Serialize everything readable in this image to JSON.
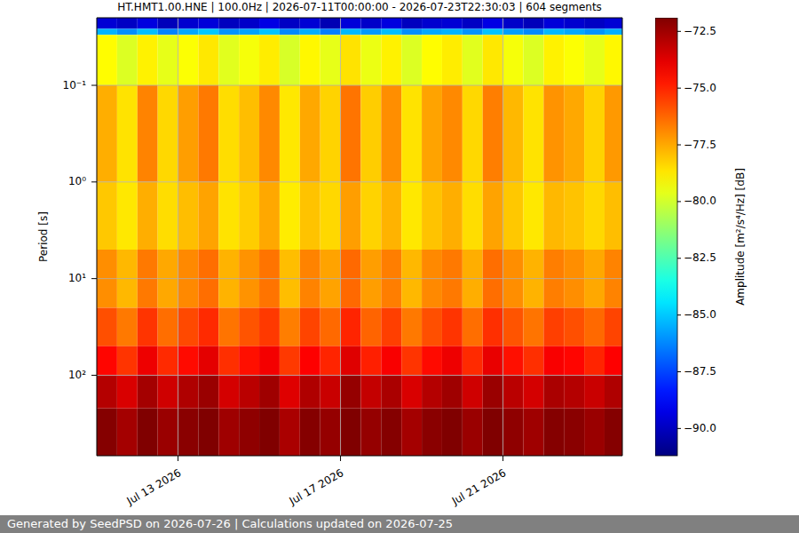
{
  "chart_data": {
    "type": "heatmap",
    "title": "HT.HMT1.00.HNE | 100.0Hz | 2026-07-11T00:00:00 - 2026-07-23T22:30:03 | 604 segments",
    "footer": "Generated by SeedPSD on 2026-07-26 | Calculations updated on 2026-07-25",
    "y_label": "Period [s]",
    "log": "y",
    "grid": true,
    "xlim": [
      "2026-07-11T00:00:00",
      "2026-07-23T22:30:03"
    ],
    "xticks": [
      {
        "value": "2026-07-13T00:00:00",
        "label": "Jul 13 2026"
      },
      {
        "value": "2026-07-17T00:00:00",
        "label": "Jul 17 2026"
      },
      {
        "value": "2026-07-21T00:00:00",
        "label": "Jul 21 2026"
      }
    ],
    "ylim": [
      0.02,
      680
    ],
    "yticks": [
      {
        "value": 0.1,
        "label": "10⁻¹"
      },
      {
        "value": 1,
        "label": "10⁰"
      },
      {
        "value": 10,
        "label": "10¹"
      },
      {
        "value": 100,
        "label": "10²"
      }
    ],
    "time_bins": [
      "2026-07-11T00:00:00",
      "2026-07-11T12:00:00",
      "2026-07-12T00:00:00",
      "2026-07-12T12:00:00",
      "2026-07-13T00:00:00",
      "2026-07-13T12:00:00",
      "2026-07-14T00:00:00",
      "2026-07-14T12:00:00",
      "2026-07-15T00:00:00",
      "2026-07-15T12:00:00",
      "2026-07-16T00:00:00",
      "2026-07-16T12:00:00",
      "2026-07-17T00:00:00",
      "2026-07-17T12:00:00",
      "2026-07-18T00:00:00",
      "2026-07-18T12:00:00",
      "2026-07-19T00:00:00",
      "2026-07-19T12:00:00",
      "2026-07-20T00:00:00",
      "2026-07-20T12:00:00",
      "2026-07-21T00:00:00",
      "2026-07-21T12:00:00",
      "2026-07-22T00:00:00",
      "2026-07-22T12:00:00",
      "2026-07-23T00:00:00",
      "2026-07-23T12:00:00",
      "2026-07-23T22:30:03"
    ],
    "period_bins": [
      0.02,
      0.026,
      0.03,
      0.1,
      1,
      5,
      20,
      50,
      100,
      220,
      680
    ],
    "values": [
      [
        -89.6,
        -89.9,
        -89.4,
        -90.1,
        -89.7,
        -89.5,
        -90.0,
        -89.8,
        -89.3,
        -89.9,
        -89.6,
        -90.2,
        -89.5,
        -89.8,
        -89.4,
        -90.0,
        -89.7,
        -89.6,
        -89.9,
        -89.3,
        -89.8,
        -90.1,
        -89.5,
        -89.7,
        -89.9,
        -89.6
      ],
      [
        -85.4,
        -86.1,
        -85.2,
        -86.3,
        -85.6,
        -85.0,
        -86.0,
        -85.7,
        -85.1,
        -86.2,
        -85.5,
        -86.4,
        -85.3,
        -85.9,
        -85.2,
        -86.1,
        -85.6,
        -85.4,
        -86.0,
        -85.1,
        -85.8,
        -86.2,
        -85.3,
        -85.6,
        -86.0,
        -85.5
      ],
      [
        -79.1,
        -79.8,
        -78.9,
        -79.6,
        -79.2,
        -78.7,
        -79.7,
        -79.3,
        -78.8,
        -79.9,
        -79.0,
        -79.6,
        -78.6,
        -79.5,
        -78.9,
        -79.8,
        -79.1,
        -78.8,
        -79.7,
        -78.7,
        -79.3,
        -79.8,
        -78.9,
        -79.2,
        -79.6,
        -79.0
      ],
      [
        -77.6,
        -78.6,
        -76.8,
        -78.4,
        -77.3,
        -76.6,
        -78.5,
        -77.9,
        -76.9,
        -78.7,
        -77.5,
        -78.3,
        -76.5,
        -78.2,
        -77.0,
        -78.6,
        -77.4,
        -76.9,
        -78.4,
        -76.7,
        -77.8,
        -78.6,
        -77.1,
        -77.5,
        -78.3,
        -77.2
      ],
      [
        -78.1,
        -78.7,
        -77.6,
        -78.5,
        -77.9,
        -77.4,
        -78.6,
        -78.2,
        -77.5,
        -78.8,
        -78.0,
        -78.4,
        -77.3,
        -78.3,
        -77.7,
        -78.7,
        -78.0,
        -77.6,
        -78.5,
        -77.4,
        -78.1,
        -78.7,
        -77.8,
        -78.0,
        -78.4,
        -77.9
      ],
      [
        -77.0,
        -77.8,
        -76.6,
        -77.5,
        -76.9,
        -76.4,
        -77.7,
        -77.1,
        -76.5,
        -77.9,
        -76.8,
        -77.4,
        -76.3,
        -77.3,
        -76.7,
        -77.8,
        -76.9,
        -76.6,
        -77.6,
        -76.4,
        -77.0,
        -77.7,
        -76.7,
        -77.0,
        -77.5,
        -76.8
      ],
      [
        -75.8,
        -76.6,
        -75.3,
        -76.4,
        -75.7,
        -75.1,
        -76.5,
        -75.9,
        -75.4,
        -76.7,
        -75.6,
        -76.3,
        -75.0,
        -76.2,
        -75.5,
        -76.6,
        -75.8,
        -75.3,
        -76.4,
        -75.2,
        -75.9,
        -76.5,
        -75.5,
        -75.8,
        -76.3,
        -75.6
      ],
      [
        -74.4,
        -75.3,
        -74.0,
        -75.1,
        -74.5,
        -73.8,
        -75.2,
        -74.6,
        -74.1,
        -75.4,
        -74.3,
        -75.0,
        -73.7,
        -74.9,
        -74.2,
        -75.3,
        -74.5,
        -74.0,
        -75.1,
        -73.9,
        -74.6,
        -75.2,
        -74.2,
        -74.4,
        -75.0,
        -74.3
      ],
      [
        -72.9,
        -73.6,
        -72.6,
        -73.4,
        -72.8,
        -72.4,
        -73.5,
        -73.0,
        -72.5,
        -73.7,
        -72.8,
        -73.3,
        -72.3,
        -73.2,
        -72.7,
        -73.6,
        -72.9,
        -72.5,
        -73.4,
        -72.4,
        -73.0,
        -73.5,
        -72.7,
        -72.9,
        -73.3,
        -72.8
      ],
      [
        -72.0,
        -72.6,
        -71.9,
        -72.4,
        -72.1,
        -71.9,
        -72.5,
        -72.2,
        -71.9,
        -72.7,
        -72.0,
        -72.3,
        -71.9,
        -72.3,
        -72.0,
        -72.6,
        -72.1,
        -71.9,
        -72.4,
        -71.9,
        -72.2,
        -72.5,
        -72.0,
        -72.1,
        -72.4,
        -72.0
      ]
    ],
    "colorbar": {
      "label": "Amplitude [m²/s⁴/Hz] [dB]",
      "range": [
        -91.2,
        -71.9
      ],
      "ticks": [
        {
          "value": -72.5,
          "label": "−72.5"
        },
        {
          "value": -75,
          "label": "−75.0"
        },
        {
          "value": -77.5,
          "label": "−77.5"
        },
        {
          "value": -80,
          "label": "−80.0"
        },
        {
          "value": -82.5,
          "label": "−82.5"
        },
        {
          "value": -85,
          "label": "−85.0"
        },
        {
          "value": -87.5,
          "label": "−87.5"
        },
        {
          "value": -90,
          "label": "−90.0"
        }
      ]
    }
  }
}
